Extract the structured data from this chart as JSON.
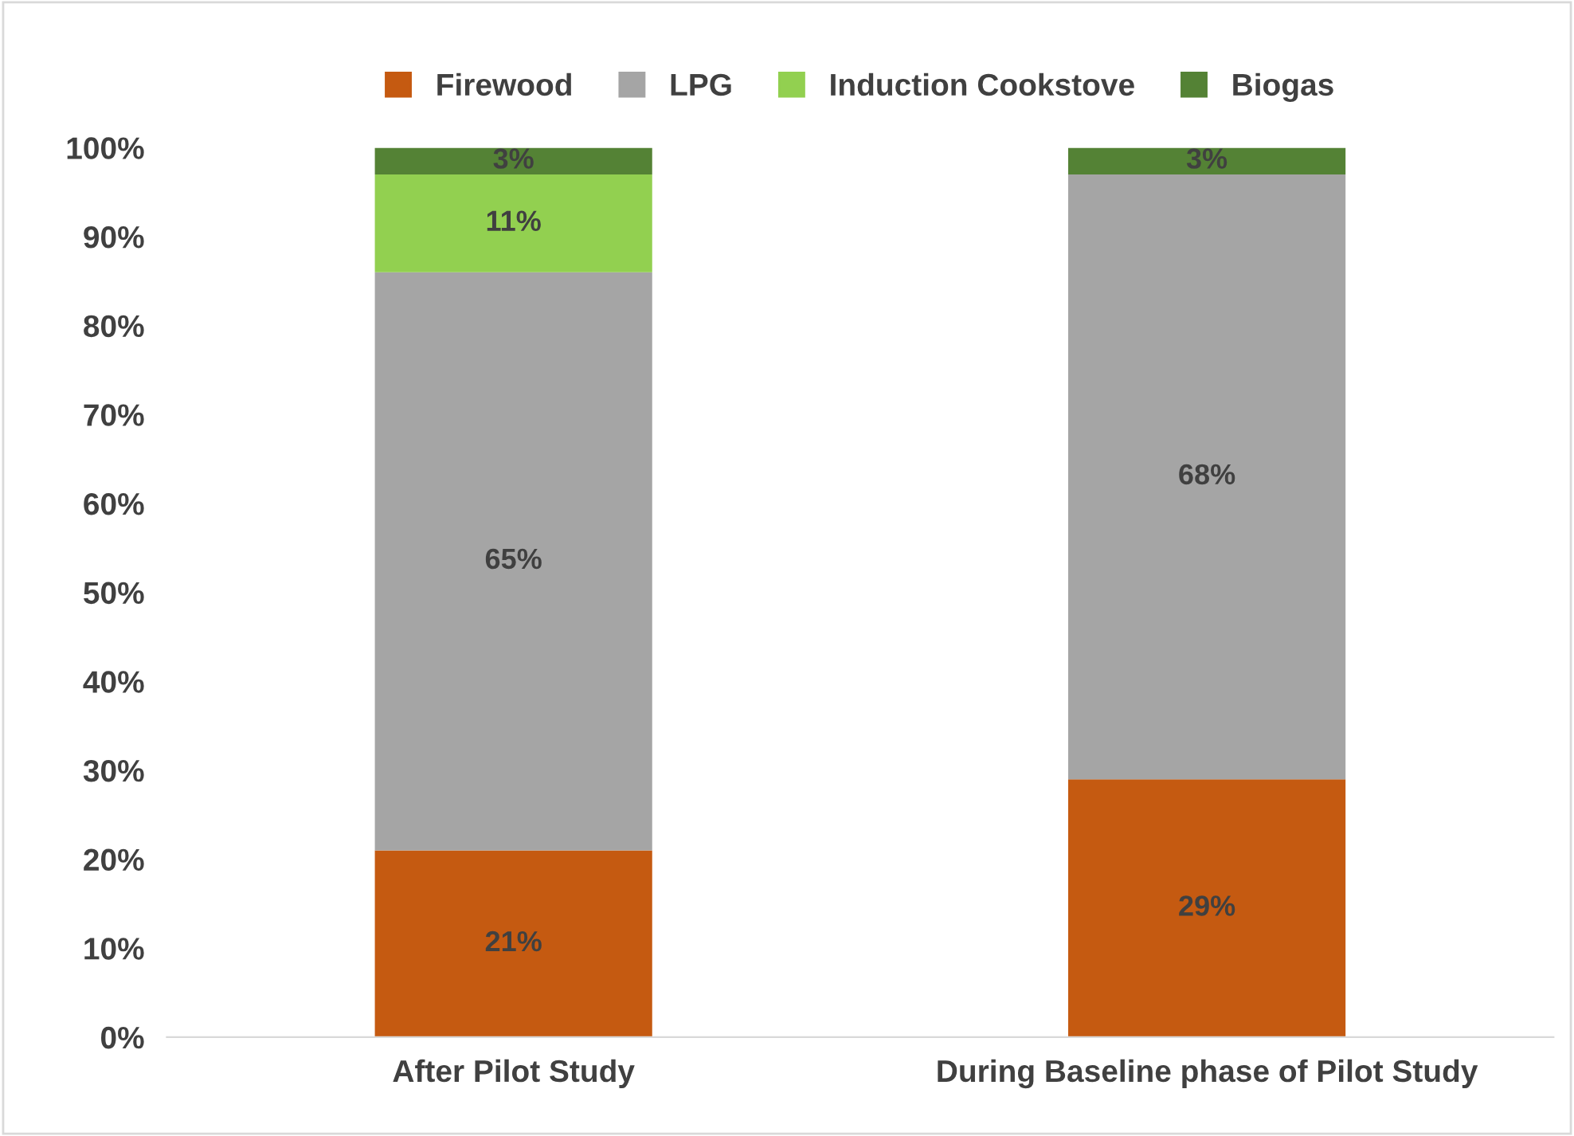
{
  "chart_data": {
    "type": "bar",
    "stacked": true,
    "categories": [
      "After Pilot Study",
      "During Baseline phase of Pilot Study"
    ],
    "series": [
      {
        "name": "Firewood",
        "color": "#c55a11",
        "values": [
          21,
          29
        ],
        "value_labels": [
          "21%",
          "29%"
        ]
      },
      {
        "name": "LPG",
        "color": "#a5a5a5",
        "values": [
          65,
          68
        ],
        "value_labels": [
          "65%",
          "68%"
        ]
      },
      {
        "name": "Induction Cookstove",
        "color": "#92d050",
        "values": [
          11,
          0
        ],
        "value_labels": [
          "11%",
          null
        ]
      },
      {
        "name": "Biogas",
        "color": "#548235",
        "values": [
          3,
          3
        ],
        "value_labels": [
          "3%",
          "3%"
        ]
      }
    ],
    "ylim": [
      0,
      100
    ],
    "yticks": [
      {
        "value": 0,
        "label": "0%"
      },
      {
        "value": 10,
        "label": "10%"
      },
      {
        "value": 20,
        "label": "20%"
      },
      {
        "value": 30,
        "label": "30%"
      },
      {
        "value": 40,
        "label": "40%"
      },
      {
        "value": 50,
        "label": "50%"
      },
      {
        "value": 60,
        "label": "60%"
      },
      {
        "value": 70,
        "label": "70%"
      },
      {
        "value": 80,
        "label": "80%"
      },
      {
        "value": 90,
        "label": "90%"
      },
      {
        "value": 100,
        "label": "100%"
      }
    ],
    "grid": false,
    "legend": "top"
  }
}
